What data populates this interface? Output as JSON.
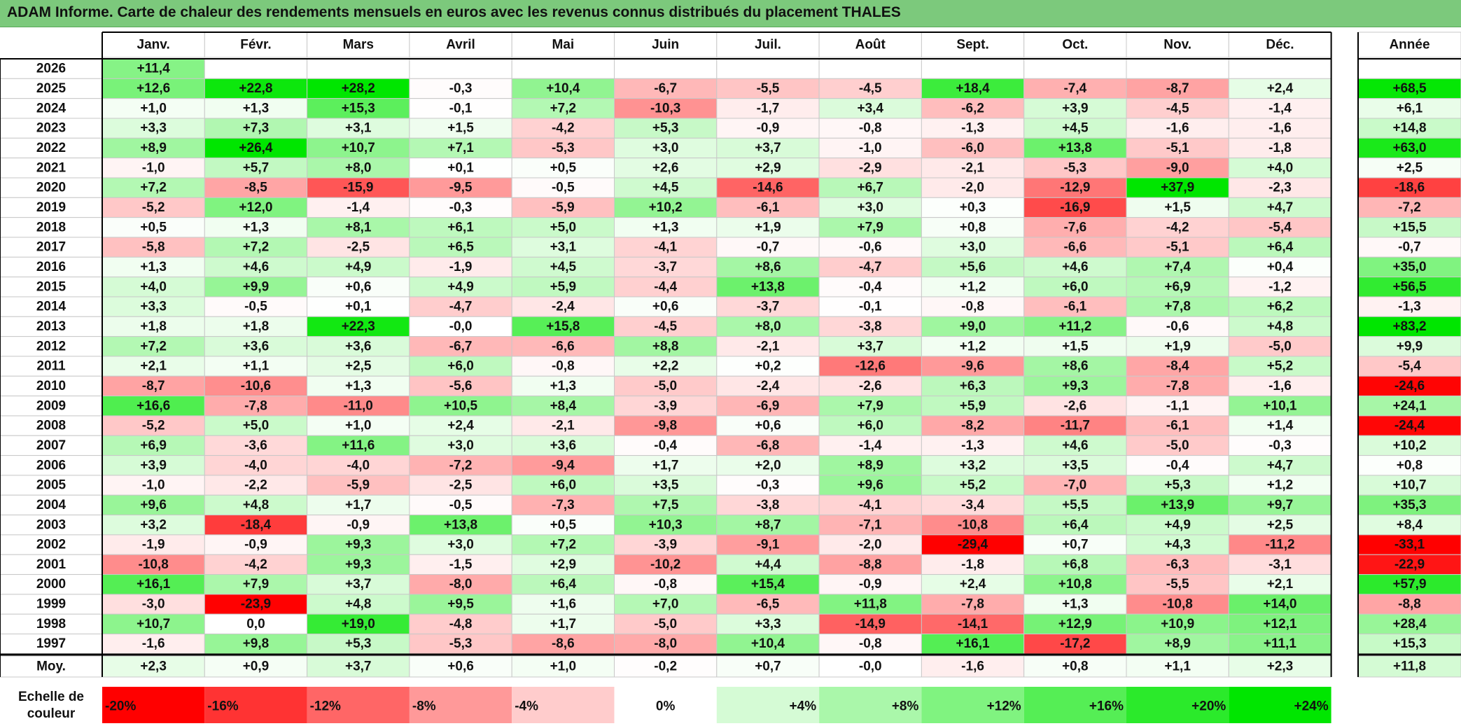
{
  "title": "ADAM Informe. Carte de chaleur des rendements mensuels en euros avec les revenus connus distribués du placement THALES",
  "chart_data": {
    "type": "heatmap",
    "title": "ADAM Informe. Carte de chaleur des rendements mensuels en euros avec les revenus connus distribués du placement THALES",
    "months": [
      "Janv.",
      "Févr.",
      "Mars",
      "Avril",
      "Mai",
      "Juin",
      "Juil.",
      "Août",
      "Sept.",
      "Oct.",
      "Nov.",
      "Déc."
    ],
    "year_header": "Année",
    "avg_label": "Moy.",
    "rows": [
      {
        "year": "2026",
        "values": [
          "+11,4",
          "",
          "",
          "",
          "",
          "",
          "",
          "",
          "",
          "",
          "",
          ""
        ],
        "annual": ""
      },
      {
        "year": "2025",
        "values": [
          "+12,6",
          "+22,8",
          "+28,2",
          "-0,3",
          "+10,4",
          "-6,7",
          "-5,5",
          "-4,5",
          "+18,4",
          "-7,4",
          "-8,7",
          "+2,4"
        ],
        "annual": "+68,5"
      },
      {
        "year": "2024",
        "values": [
          "+1,0",
          "+1,3",
          "+15,3",
          "-0,1",
          "+7,2",
          "-10,3",
          "-1,7",
          "+3,4",
          "-6,2",
          "+3,9",
          "-4,5",
          "-1,4"
        ],
        "annual": "+6,1"
      },
      {
        "year": "2023",
        "values": [
          "+3,3",
          "+7,3",
          "+3,1",
          "+1,5",
          "-4,2",
          "+5,3",
          "-0,9",
          "-0,8",
          "-1,3",
          "+4,5",
          "-1,6",
          "-1,6"
        ],
        "annual": "+14,8"
      },
      {
        "year": "2022",
        "values": [
          "+8,9",
          "+26,4",
          "+10,7",
          "+7,1",
          "-5,3",
          "+3,0",
          "+3,7",
          "-1,0",
          "-6,0",
          "+13,8",
          "-5,1",
          "-1,8"
        ],
        "annual": "+63,0"
      },
      {
        "year": "2021",
        "values": [
          "-1,0",
          "+5,7",
          "+8,0",
          "+0,1",
          "+0,5",
          "+2,6",
          "+2,9",
          "-2,9",
          "-2,1",
          "-5,3",
          "-9,0",
          "+4,0"
        ],
        "annual": "+2,5"
      },
      {
        "year": "2020",
        "values": [
          "+7,2",
          "-8,5",
          "-15,9",
          "-9,5",
          "-0,5",
          "+4,5",
          "-14,6",
          "+6,7",
          "-2,0",
          "-12,9",
          "+37,9",
          "-2,3"
        ],
        "annual": "-18,6"
      },
      {
        "year": "2019",
        "values": [
          "-5,2",
          "+12,0",
          "-1,4",
          "-0,3",
          "-5,9",
          "+10,2",
          "-6,1",
          "+3,0",
          "+0,3",
          "-16,9",
          "+1,5",
          "+4,7"
        ],
        "annual": "-7,2"
      },
      {
        "year": "2018",
        "values": [
          "+0,5",
          "+1,3",
          "+8,1",
          "+6,1",
          "+5,0",
          "+1,3",
          "+1,9",
          "+7,9",
          "+0,8",
          "-7,6",
          "-4,2",
          "-5,4"
        ],
        "annual": "+15,5"
      },
      {
        "year": "2017",
        "values": [
          "-5,8",
          "+7,2",
          "-2,5",
          "+6,5",
          "+3,1",
          "-4,1",
          "-0,7",
          "-0,6",
          "+3,0",
          "-6,6",
          "-5,1",
          "+6,4"
        ],
        "annual": "-0,7"
      },
      {
        "year": "2016",
        "values": [
          "+1,3",
          "+4,6",
          "+4,9",
          "-1,9",
          "+4,5",
          "-3,7",
          "+8,6",
          "-4,7",
          "+5,6",
          "+4,6",
          "+7,4",
          "+0,4"
        ],
        "annual": "+35,0"
      },
      {
        "year": "2015",
        "values": [
          "+4,0",
          "+9,9",
          "+0,6",
          "+4,9",
          "+5,9",
          "-4,4",
          "+13,8",
          "-0,4",
          "+1,2",
          "+6,0",
          "+6,9",
          "-1,2"
        ],
        "annual": "+56,5"
      },
      {
        "year": "2014",
        "values": [
          "+3,3",
          "-0,5",
          "+0,1",
          "-4,7",
          "-2,4",
          "+0,6",
          "-3,7",
          "-0,1",
          "-0,8",
          "-6,1",
          "+7,8",
          "+6,2"
        ],
        "annual": "-1,3"
      },
      {
        "year": "2013",
        "values": [
          "+1,8",
          "+1,8",
          "+22,3",
          "-0,0",
          "+15,8",
          "-4,5",
          "+8,0",
          "-3,8",
          "+9,0",
          "+11,2",
          "-0,6",
          "+4,8"
        ],
        "annual": "+83,2"
      },
      {
        "year": "2012",
        "values": [
          "+7,2",
          "+3,6",
          "+3,6",
          "-6,7",
          "-6,6",
          "+8,8",
          "-2,1",
          "+3,7",
          "+1,2",
          "+1,5",
          "+1,9",
          "-5,0"
        ],
        "annual": "+9,9"
      },
      {
        "year": "2011",
        "values": [
          "+2,1",
          "+1,1",
          "+2,5",
          "+6,0",
          "-0,8",
          "+2,2",
          "+0,2",
          "-12,6",
          "-9,6",
          "+8,6",
          "-8,4",
          "+5,2"
        ],
        "annual": "-5,4"
      },
      {
        "year": "2010",
        "values": [
          "-8,7",
          "-10,6",
          "+1,3",
          "-5,6",
          "+1,3",
          "-5,0",
          "-2,4",
          "-2,6",
          "+6,3",
          "+9,3",
          "-7,8",
          "-1,6"
        ],
        "annual": "-24,6"
      },
      {
        "year": "2009",
        "values": [
          "+16,6",
          "-7,8",
          "-11,0",
          "+10,5",
          "+8,4",
          "-3,9",
          "-6,9",
          "+7,9",
          "+5,9",
          "-2,6",
          "-1,1",
          "+10,1"
        ],
        "annual": "+24,1"
      },
      {
        "year": "2008",
        "values": [
          "-5,2",
          "+5,0",
          "+1,0",
          "+2,4",
          "-2,1",
          "-9,8",
          "+0,6",
          "+6,0",
          "-8,2",
          "-11,7",
          "-6,1",
          "+1,4"
        ],
        "annual": "-24,4"
      },
      {
        "year": "2007",
        "values": [
          "+6,9",
          "-3,6",
          "+11,6",
          "+3,0",
          "+3,6",
          "-0,4",
          "-6,8",
          "-1,4",
          "-1,3",
          "+4,6",
          "-5,0",
          "-0,3"
        ],
        "annual": "+10,2"
      },
      {
        "year": "2006",
        "values": [
          "+3,9",
          "-4,0",
          "-4,0",
          "-7,2",
          "-9,4",
          "+1,7",
          "+2,0",
          "+8,9",
          "+3,2",
          "+3,5",
          "-0,4",
          "+4,7"
        ],
        "annual": "+0,8"
      },
      {
        "year": "2005",
        "values": [
          "-1,0",
          "-2,2",
          "-5,9",
          "-2,5",
          "+6,0",
          "+3,5",
          "-0,3",
          "+9,6",
          "+5,2",
          "-7,0",
          "+5,3",
          "+1,2"
        ],
        "annual": "+10,7"
      },
      {
        "year": "2004",
        "values": [
          "+9,6",
          "+4,8",
          "+1,7",
          "-0,5",
          "-7,3",
          "+7,5",
          "-3,8",
          "-4,1",
          "-3,4",
          "+5,5",
          "+13,9",
          "+9,7"
        ],
        "annual": "+35,3"
      },
      {
        "year": "2003",
        "values": [
          "+3,2",
          "-18,4",
          "-0,9",
          "+13,8",
          "+0,5",
          "+10,3",
          "+8,7",
          "-7,1",
          "-10,8",
          "+6,4",
          "+4,9",
          "+2,5"
        ],
        "annual": "+8,4"
      },
      {
        "year": "2002",
        "values": [
          "-1,9",
          "-0,9",
          "+9,3",
          "+3,0",
          "+7,2",
          "-3,9",
          "-9,1",
          "-2,0",
          "-29,4",
          "+0,7",
          "+4,3",
          "-11,2"
        ],
        "annual": "-33,1"
      },
      {
        "year": "2001",
        "values": [
          "-10,8",
          "-4,2",
          "+9,3",
          "-1,5",
          "+2,9",
          "-10,2",
          "+4,4",
          "-8,8",
          "-1,8",
          "+6,8",
          "-6,3",
          "-3,1"
        ],
        "annual": "-22,9"
      },
      {
        "year": "2000",
        "values": [
          "+16,1",
          "+7,9",
          "+3,7",
          "-8,0",
          "+6,4",
          "-0,8",
          "+15,4",
          "-0,9",
          "+2,4",
          "+10,8",
          "-5,5",
          "+2,1"
        ],
        "annual": "+57,9"
      },
      {
        "year": "1999",
        "values": [
          "-3,0",
          "-23,9",
          "+4,8",
          "+9,5",
          "+1,6",
          "+7,0",
          "-6,5",
          "+11,8",
          "-7,8",
          "+1,3",
          "-10,8",
          "+14,0"
        ],
        "annual": "-8,8"
      },
      {
        "year": "1998",
        "values": [
          "+10,7",
          "0,0",
          "+19,0",
          "-4,8",
          "+1,7",
          "-5,0",
          "+3,3",
          "-14,9",
          "-14,1",
          "+12,9",
          "+10,9",
          "+12,1"
        ],
        "annual": "+28,4"
      },
      {
        "year": "1997",
        "values": [
          "-1,6",
          "+9,8",
          "+5,3",
          "-5,3",
          "-8,6",
          "-8,0",
          "+10,4",
          "-0,8",
          "+16,1",
          "-17,2",
          "+8,9",
          "+11,1"
        ],
        "annual": "+15,3"
      }
    ],
    "averages": [
      "+2,3",
      "+0,9",
      "+3,7",
      "+0,6",
      "+1,0",
      "-0,2",
      "+0,7",
      "-0,0",
      "-1,6",
      "+0,8",
      "+1,1",
      "+2,3"
    ],
    "average_annual": "+11,8",
    "scale_label": "Echelle de couleur",
    "scale": [
      "-20%",
      "-16%",
      "-12%",
      "-8%",
      "-4%",
      "0%",
      "+4%",
      "+8%",
      "+12%",
      "+16%",
      "+20%",
      "+24%"
    ],
    "colors": {
      "negative_max": "#ff0000",
      "neutral": "#ffffff",
      "positive_max": "#00e600"
    }
  }
}
